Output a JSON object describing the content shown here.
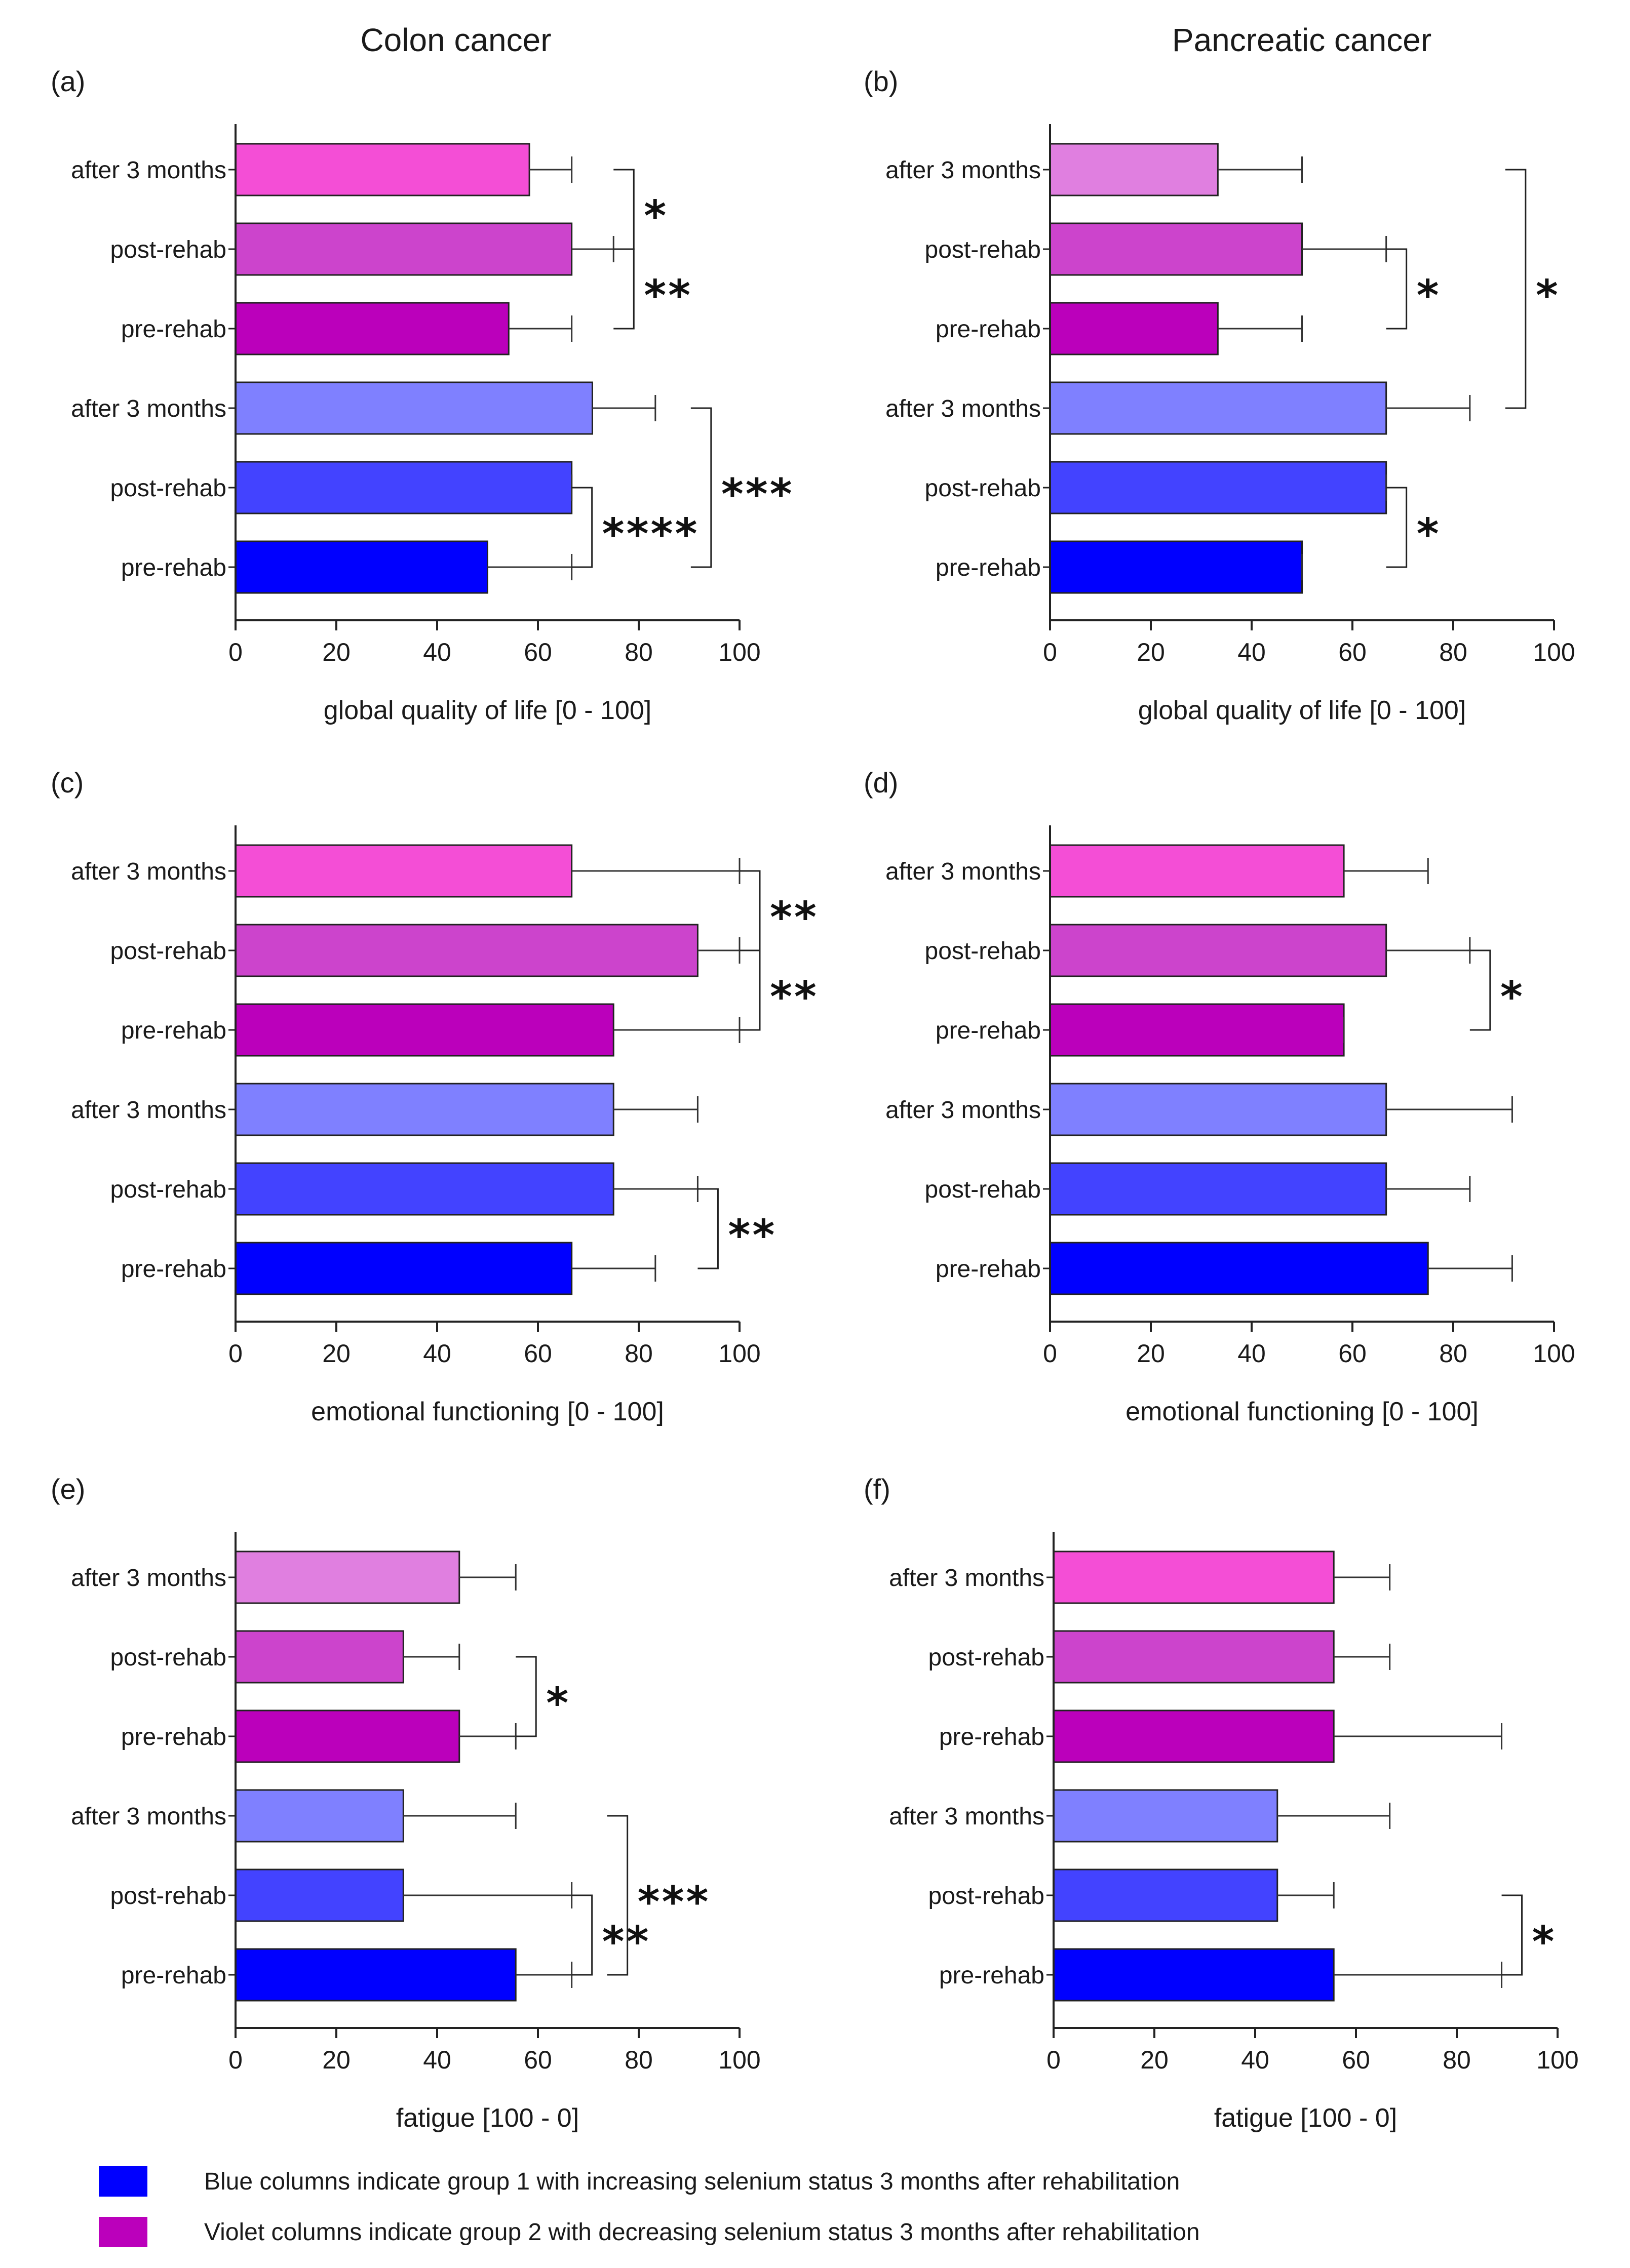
{
  "column_titles": [
    "Colon cancer",
    "Pancreatic cancer"
  ],
  "legend": [
    {
      "text": "Blue columns indicate group 1 with increasing selenium status 3 months after rehabilitation",
      "color": "#0000ff"
    },
    {
      "text": "Violet columns indicate group 2 with decreasing selenium status 3 months after rehabilitation",
      "color": "#bb00bb"
    }
  ],
  "chart_data": [
    {
      "panel": "(a)",
      "type": "bar",
      "orientation": "horizontal",
      "xlabel": "global quality of life [0 - 100]",
      "xlim": [
        0,
        100
      ],
      "xticks": [
        0,
        20,
        40,
        60,
        80,
        100
      ],
      "categories": [
        "after 3 months",
        "post-rehab",
        "pre-rehab",
        "after 3 months",
        "post-rehab",
        "pre-rehab"
      ],
      "values": [
        58.3,
        66.7,
        54.2,
        70.8,
        66.7,
        50
      ],
      "errors": [
        66.7,
        75,
        66.7,
        83.3,
        66.7,
        66.7
      ],
      "colors": [
        "#f44ed6",
        "#cc44cc",
        "#bb00bb",
        "#7f80ff",
        "#4343ff",
        "#0000ff"
      ],
      "significance": [
        {
          "from": 0,
          "to": 1,
          "label": "*"
        },
        {
          "from": 1,
          "to": 2,
          "label": "**"
        },
        {
          "from": 4,
          "to": 5,
          "label": "****"
        },
        {
          "from": 3,
          "to": 5,
          "label": "***"
        }
      ]
    },
    {
      "panel": "(b)",
      "type": "bar",
      "orientation": "horizontal",
      "xlabel": "global quality of life [0 - 100]",
      "xlim": [
        0,
        100
      ],
      "xticks": [
        0,
        20,
        40,
        60,
        80,
        100
      ],
      "categories": [
        "after 3 months",
        "post-rehab",
        "pre-rehab",
        "after 3 months",
        "post-rehab",
        "pre-rehab"
      ],
      "values": [
        33.3,
        50,
        33.3,
        66.7,
        66.7,
        50
      ],
      "errors": [
        50,
        66.7,
        50,
        83.3,
        66.7,
        50
      ],
      "colors": [
        "#e07fe0",
        "#cc44cc",
        "#bb00bb",
        "#7f80ff",
        "#4343ff",
        "#0000ff"
      ],
      "significance": [
        {
          "from": 1,
          "to": 2,
          "label": "*"
        },
        {
          "from": 0,
          "to": 3,
          "label": "*"
        },
        {
          "from": 4,
          "to": 5,
          "label": "*"
        }
      ]
    },
    {
      "panel": "(c)",
      "type": "bar",
      "orientation": "horizontal",
      "xlabel": "emotional functioning [0 - 100]",
      "xlim": [
        0,
        100
      ],
      "xticks": [
        0,
        20,
        40,
        60,
        80,
        100
      ],
      "categories": [
        "after 3 months",
        "post-rehab",
        "pre-rehab",
        "after 3 months",
        "post-rehab",
        "pre-rehab"
      ],
      "values": [
        66.7,
        91.7,
        75,
        75,
        75,
        66.7
      ],
      "errors": [
        100,
        100,
        100,
        91.7,
        91.7,
        83.3
      ],
      "colors": [
        "#f44ed6",
        "#cc44cc",
        "#bb00bb",
        "#7f80ff",
        "#4343ff",
        "#0000ff"
      ],
      "significance": [
        {
          "from": 0,
          "to": 1,
          "label": "**"
        },
        {
          "from": 1,
          "to": 2,
          "label": "**"
        },
        {
          "from": 4,
          "to": 5,
          "label": "**"
        }
      ]
    },
    {
      "panel": "(d)",
      "type": "bar",
      "orientation": "horizontal",
      "xlabel": "emotional functioning [0 - 100]",
      "xlim": [
        0,
        100
      ],
      "xticks": [
        0,
        20,
        40,
        60,
        80,
        100
      ],
      "categories": [
        "after 3 months",
        "post-rehab",
        "pre-rehab",
        "after 3 months",
        "post-rehab",
        "pre-rehab"
      ],
      "values": [
        58.3,
        66.7,
        58.3,
        66.7,
        66.7,
        75
      ],
      "errors": [
        75,
        83.3,
        58.3,
        91.7,
        83.3,
        91.7
      ],
      "colors": [
        "#f44ed6",
        "#cc44cc",
        "#bb00bb",
        "#7f80ff",
        "#4343ff",
        "#0000ff"
      ],
      "significance": [
        {
          "from": 1,
          "to": 2,
          "label": "*"
        }
      ]
    },
    {
      "panel": "(e)",
      "type": "bar",
      "orientation": "horizontal",
      "xlabel": "fatigue [100 - 0]",
      "xlim": [
        0,
        100
      ],
      "xticks": [
        0,
        20,
        40,
        60,
        80,
        100
      ],
      "categories": [
        "after 3 months",
        "post-rehab",
        "pre-rehab",
        "after 3 months",
        "post-rehab",
        "pre-rehab"
      ],
      "values": [
        44.4,
        33.3,
        44.4,
        33.3,
        33.3,
        55.6
      ],
      "errors": [
        55.6,
        44.4,
        55.6,
        55.6,
        66.7,
        66.7
      ],
      "colors": [
        "#e07fe0",
        "#cc44cc",
        "#bb00bb",
        "#7f80ff",
        "#4343ff",
        "#0000ff"
      ],
      "significance": [
        {
          "from": 1,
          "to": 2,
          "label": "*"
        },
        {
          "from": 4,
          "to": 5,
          "label": "**"
        },
        {
          "from": 3,
          "to": 5,
          "label": "***"
        }
      ]
    },
    {
      "panel": "(f)",
      "type": "bar",
      "orientation": "horizontal",
      "xlabel": "fatigue [100 - 0]",
      "xlim": [
        0,
        100
      ],
      "xticks": [
        0,
        20,
        40,
        60,
        80,
        100
      ],
      "categories": [
        "after 3 months",
        "post-rehab",
        "pre-rehab",
        "after 3 months",
        "post-rehab",
        "pre-rehab"
      ],
      "values": [
        55.6,
        55.6,
        55.6,
        44.4,
        44.4,
        55.6
      ],
      "errors": [
        66.7,
        66.7,
        88.9,
        66.7,
        55.6,
        88.9
      ],
      "colors": [
        "#f44ed6",
        "#cc44cc",
        "#bb00bb",
        "#7f80ff",
        "#4343ff",
        "#0000ff"
      ],
      "significance": [
        {
          "from": 4,
          "to": 5,
          "label": "*"
        }
      ]
    }
  ]
}
